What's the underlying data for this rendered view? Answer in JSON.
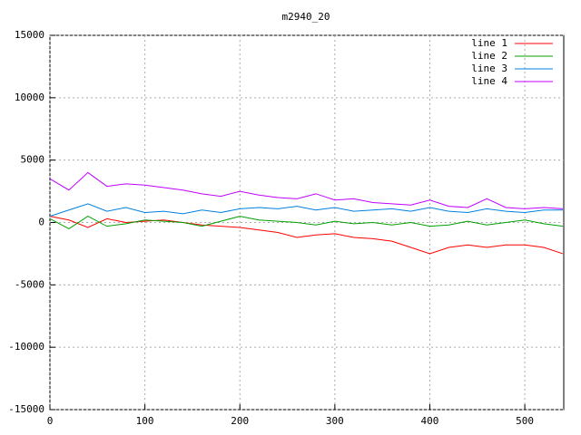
{
  "chart_data": {
    "type": "line",
    "title": "m2940_20",
    "x": [
      0,
      20,
      40,
      60,
      80,
      100,
      120,
      140,
      160,
      180,
      200,
      220,
      240,
      260,
      280,
      300,
      320,
      340,
      360,
      380,
      400,
      420,
      440,
      460,
      480,
      500,
      520,
      540
    ],
    "series": [
      {
        "name": "line 1",
        "color": "#ff0000",
        "values": [
          500,
          200,
          -400,
          300,
          0,
          100,
          200,
          0,
          -200,
          -300,
          -400,
          -600,
          -800,
          -1200,
          -1000,
          -900,
          -1200,
          -1300,
          -1500,
          -2000,
          -2500,
          -2000,
          -1800,
          -2000,
          -1800,
          -1800,
          -2000,
          -2500
        ]
      },
      {
        "name": "line 2",
        "color": "#00a000",
        "values": [
          300,
          -500,
          500,
          -300,
          -100,
          200,
          100,
          0,
          -300,
          100,
          500,
          200,
          100,
          0,
          -200,
          100,
          -100,
          0,
          -200,
          0,
          -300,
          -200,
          100,
          -200,
          0,
          200,
          -100,
          -300
        ]
      },
      {
        "name": "line 3",
        "color": "#0080e0",
        "values": [
          500,
          1000,
          1500,
          900,
          1200,
          800,
          900,
          700,
          1000,
          800,
          1100,
          1200,
          1100,
          1300,
          1000,
          1200,
          900,
          1000,
          1100,
          900,
          1200,
          900,
          800,
          1100,
          900,
          800,
          1000,
          1000
        ]
      },
      {
        "name": "line 4",
        "color": "#c000ff",
        "values": [
          3500,
          2600,
          4000,
          2900,
          3100,
          3000,
          2800,
          2600,
          2300,
          2100,
          2500,
          2200,
          2000,
          1900,
          2300,
          1800,
          1900,
          1600,
          1500,
          1400,
          1800,
          1300,
          1200,
          1900,
          1200,
          1100,
          1200,
          1100
        ]
      }
    ],
    "xlim": [
      0,
      541
    ],
    "ylim": [
      -15000,
      15000
    ],
    "xticks": [
      0,
      100,
      200,
      300,
      400,
      500
    ],
    "yticks": [
      -15000,
      -10000,
      -5000,
      0,
      5000,
      10000,
      15000
    ],
    "grid": true,
    "legend": "top-right"
  }
}
